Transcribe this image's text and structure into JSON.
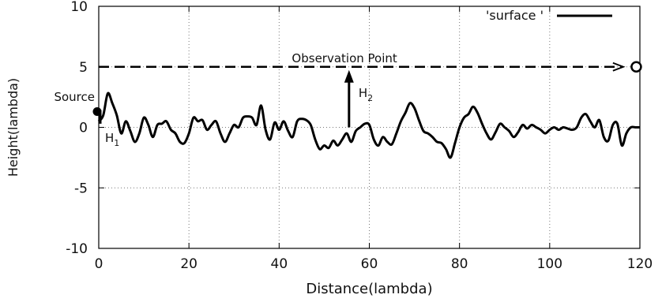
{
  "chart_data": {
    "type": "line",
    "title": "",
    "xlabel": "Distance(lambda)",
    "ylabel": "Height(lambda)",
    "xlim": [
      0,
      120
    ],
    "ylim": [
      -10,
      10
    ],
    "x_ticks": [
      "0",
      "20",
      "40",
      "60",
      "80",
      "100",
      "120"
    ],
    "y_ticks": [
      "-10",
      "-5",
      "0",
      "5",
      "10"
    ],
    "grid": true,
    "legend_position": "top-right",
    "series": [
      {
        "name": "'surface '",
        "color": "#000000",
        "x": [
          0,
          1,
          2,
          3,
          4,
          5,
          6,
          7,
          8,
          9,
          10,
          11,
          12,
          13,
          14,
          15,
          16,
          17,
          18,
          19,
          20,
          21,
          22,
          23,
          24,
          25,
          26,
          27,
          28,
          29,
          30,
          31,
          32,
          33,
          34,
          35,
          36,
          37,
          38,
          39,
          40,
          41,
          42,
          43,
          44,
          45,
          46,
          47,
          48,
          49,
          50,
          51,
          52,
          53,
          54,
          55,
          56,
          57,
          58,
          59,
          60,
          61,
          62,
          63,
          64,
          65,
          66,
          67,
          68,
          69,
          70,
          71,
          72,
          73,
          74,
          75,
          76,
          77,
          78,
          79,
          80,
          81,
          82,
          83,
          84,
          85,
          86,
          87,
          88,
          89,
          90,
          91,
          92,
          93,
          94,
          95,
          96,
          97,
          98,
          99,
          100,
          101,
          102,
          103,
          104,
          105,
          106,
          107,
          108,
          109,
          110,
          111,
          112,
          113,
          114,
          115,
          116,
          117,
          118,
          119,
          120
        ],
        "y": [
          0.5,
          1.0,
          2.8,
          2.0,
          1.0,
          -0.5,
          0.5,
          -0.3,
          -1.2,
          -0.5,
          0.8,
          0.2,
          -0.8,
          0.2,
          0.3,
          0.5,
          -0.2,
          -0.5,
          -1.2,
          -1.3,
          -0.5,
          0.8,
          0.5,
          0.6,
          -0.2,
          0.2,
          0.5,
          -0.5,
          -1.2,
          -0.5,
          0.2,
          0.0,
          0.8,
          0.9,
          0.8,
          0.2,
          1.8,
          -0.2,
          -1.0,
          0.4,
          -0.2,
          0.5,
          -0.3,
          -0.8,
          0.5,
          0.7,
          0.6,
          0.2,
          -1.0,
          -1.8,
          -1.5,
          -1.7,
          -1.1,
          -1.5,
          -1.0,
          -0.5,
          -1.2,
          -0.3,
          0.0,
          0.3,
          0.2,
          -1.0,
          -1.5,
          -0.8,
          -1.2,
          -1.4,
          -0.5,
          0.5,
          1.2,
          2.0,
          1.6,
          0.6,
          -0.3,
          -0.5,
          -0.8,
          -1.2,
          -1.3,
          -1.8,
          -2.5,
          -1.3,
          0.0,
          0.8,
          1.1,
          1.7,
          1.2,
          0.3,
          -0.5,
          -1.0,
          -0.4,
          0.3,
          0.0,
          -0.3,
          -0.8,
          -0.4,
          0.2,
          -0.1,
          0.2,
          0.0,
          -0.2,
          -0.5,
          -0.2,
          0.0,
          -0.2,
          0.0,
          -0.1,
          -0.2,
          0.0,
          0.8,
          1.1,
          0.5,
          0.0,
          0.6,
          -0.8,
          -1.1,
          0.2,
          0.3,
          -1.5,
          -0.5,
          0.0,
          0.0,
          0.0
        ]
      }
    ],
    "annotations": {
      "observation_label": "Observation Point",
      "observation_height": 5,
      "source_label": "Source",
      "h1": {
        "letter": "H",
        "sub": "1"
      },
      "h2": {
        "letter": "H",
        "sub": "2"
      }
    }
  }
}
